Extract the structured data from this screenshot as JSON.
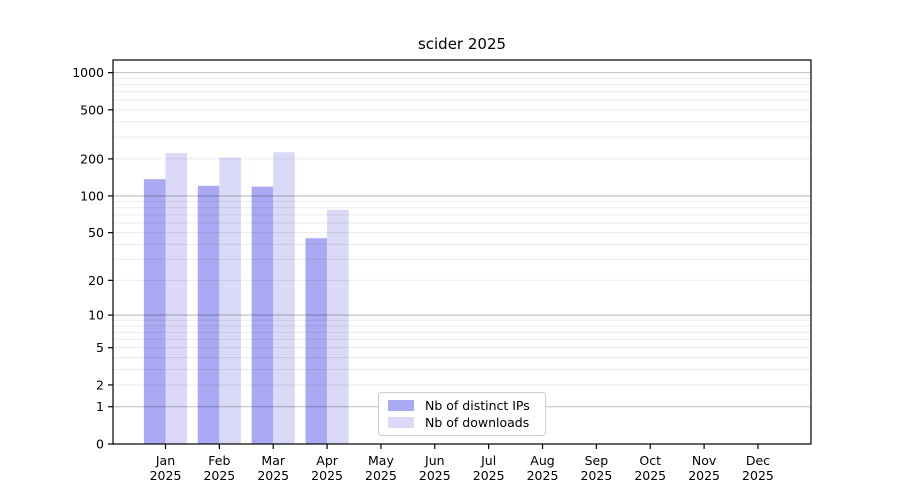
{
  "title": "scider 2025",
  "chart_data": {
    "type": "bar",
    "title": "scider 2025",
    "categories": [
      "Jan",
      "Feb",
      "Mar",
      "Apr",
      "May",
      "Jun",
      "Jul",
      "Aug",
      "Sep",
      "Oct",
      "Nov",
      "Dec"
    ],
    "category_year": "2025",
    "series": [
      {
        "name": "Nb of distinct IPs",
        "color": "#a9a9f4",
        "values": [
          137,
          121,
          119,
          45,
          0,
          0,
          0,
          0,
          0,
          0,
          0,
          0
        ]
      },
      {
        "name": "Nb of downloads",
        "color": "#dadaf8",
        "values": [
          223,
          205,
          227,
          77,
          0,
          0,
          0,
          0,
          0,
          0,
          0,
          0
        ]
      }
    ],
    "yscale": "log1p",
    "yticks": [
      0,
      1,
      2,
      5,
      10,
      20,
      50,
      100,
      200,
      500,
      1000
    ],
    "ylim": [
      0,
      1265
    ],
    "xlabel": "",
    "ylabel": "",
    "grid": "horizontal",
    "grid_major_values": [
      1,
      10,
      100,
      1000
    ],
    "grid_minor_values": [
      2,
      3,
      4,
      5,
      6,
      7,
      8,
      9,
      20,
      30,
      40,
      50,
      60,
      70,
      80,
      90,
      200,
      300,
      400,
      500,
      600,
      700,
      800,
      900
    ],
    "legend_position": "lower-center",
    "colors": {
      "axis": "#000000",
      "grid_major": "rgba(0,0,0,0.26)",
      "grid_minor": "rgba(0,0,0,0.08)",
      "tick_label": "#000000"
    }
  }
}
